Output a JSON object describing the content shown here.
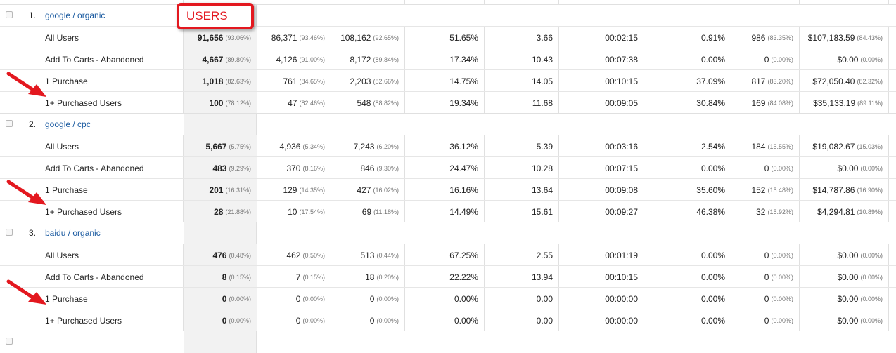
{
  "annotation": {
    "label": "USERS",
    "color": "#e3181f"
  },
  "groups": [
    {
      "number": "1.",
      "name": "google / organic",
      "rows": [
        {
          "segment": "All Users",
          "users": "91,656",
          "users_pct": "(93.06%)",
          "c2": "86,371",
          "c2_pct": "(93.46%)",
          "c3": "108,162",
          "c3_pct": "(92.65%)",
          "c4": "51.65%",
          "c5": "3.66",
          "c6": "00:02:15",
          "c7": "0.91%",
          "c8": "986",
          "c8_pct": "(83.35%)",
          "c9": "$107,183.59",
          "c9_pct": "(84.43%)"
        },
        {
          "segment": "Add To Carts - Abandoned",
          "users": "4,667",
          "users_pct": "(89.80%)",
          "c2": "4,126",
          "c2_pct": "(91.00%)",
          "c3": "8,172",
          "c3_pct": "(89.84%)",
          "c4": "17.34%",
          "c5": "10.43",
          "c6": "00:07:38",
          "c7": "0.00%",
          "c8": "0",
          "c8_pct": "(0.00%)",
          "c9": "$0.00",
          "c9_pct": "(0.00%)"
        },
        {
          "segment": "1 Purchase",
          "users": "1,018",
          "users_pct": "(82.63%)",
          "c2": "761",
          "c2_pct": "(84.65%)",
          "c3": "2,203",
          "c3_pct": "(82.66%)",
          "c4": "14.75%",
          "c5": "14.05",
          "c6": "00:10:15",
          "c7": "37.09%",
          "c8": "817",
          "c8_pct": "(83.20%)",
          "c9": "$72,050.40",
          "c9_pct": "(82.32%)"
        },
        {
          "segment": "1+ Purchased Users",
          "users": "100",
          "users_pct": "(78.12%)",
          "c2": "47",
          "c2_pct": "(82.46%)",
          "c3": "548",
          "c3_pct": "(88.82%)",
          "c4": "19.34%",
          "c5": "11.68",
          "c6": "00:09:05",
          "c7": "30.84%",
          "c8": "169",
          "c8_pct": "(84.08%)",
          "c9": "$35,133.19",
          "c9_pct": "(89.11%)"
        }
      ]
    },
    {
      "number": "2.",
      "name": "google / cpc",
      "rows": [
        {
          "segment": "All Users",
          "users": "5,667",
          "users_pct": "(5.75%)",
          "c2": "4,936",
          "c2_pct": "(5.34%)",
          "c3": "7,243",
          "c3_pct": "(6.20%)",
          "c4": "36.12%",
          "c5": "5.39",
          "c6": "00:03:16",
          "c7": "2.54%",
          "c8": "184",
          "c8_pct": "(15.55%)",
          "c9": "$19,082.67",
          "c9_pct": "(15.03%)"
        },
        {
          "segment": "Add To Carts - Abandoned",
          "users": "483",
          "users_pct": "(9.29%)",
          "c2": "370",
          "c2_pct": "(8.16%)",
          "c3": "846",
          "c3_pct": "(9.30%)",
          "c4": "24.47%",
          "c5": "10.28",
          "c6": "00:07:15",
          "c7": "0.00%",
          "c8": "0",
          "c8_pct": "(0.00%)",
          "c9": "$0.00",
          "c9_pct": "(0.00%)"
        },
        {
          "segment": "1 Purchase",
          "users": "201",
          "users_pct": "(16.31%)",
          "c2": "129",
          "c2_pct": "(14.35%)",
          "c3": "427",
          "c3_pct": "(16.02%)",
          "c4": "16.16%",
          "c5": "13.64",
          "c6": "00:09:08",
          "c7": "35.60%",
          "c8": "152",
          "c8_pct": "(15.48%)",
          "c9": "$14,787.86",
          "c9_pct": "(16.90%)"
        },
        {
          "segment": "1+ Purchased Users",
          "users": "28",
          "users_pct": "(21.88%)",
          "c2": "10",
          "c2_pct": "(17.54%)",
          "c3": "69",
          "c3_pct": "(11.18%)",
          "c4": "14.49%",
          "c5": "15.61",
          "c6": "00:09:27",
          "c7": "46.38%",
          "c8": "32",
          "c8_pct": "(15.92%)",
          "c9": "$4,294.81",
          "c9_pct": "(10.89%)"
        }
      ]
    },
    {
      "number": "3.",
      "name": "baidu / organic",
      "rows": [
        {
          "segment": "All Users",
          "users": "476",
          "users_pct": "(0.48%)",
          "c2": "462",
          "c2_pct": "(0.50%)",
          "c3": "513",
          "c3_pct": "(0.44%)",
          "c4": "67.25%",
          "c5": "2.55",
          "c6": "00:01:19",
          "c7": "0.00%",
          "c8": "0",
          "c8_pct": "(0.00%)",
          "c9": "$0.00",
          "c9_pct": "(0.00%)"
        },
        {
          "segment": "Add To Carts - Abandoned",
          "users": "8",
          "users_pct": "(0.15%)",
          "c2": "7",
          "c2_pct": "(0.15%)",
          "c3": "18",
          "c3_pct": "(0.20%)",
          "c4": "22.22%",
          "c5": "13.94",
          "c6": "00:10:15",
          "c7": "0.00%",
          "c8": "0",
          "c8_pct": "(0.00%)",
          "c9": "$0.00",
          "c9_pct": "(0.00%)"
        },
        {
          "segment": "1 Purchase",
          "users": "0",
          "users_pct": "(0.00%)",
          "c2": "0",
          "c2_pct": "(0.00%)",
          "c3": "0",
          "c3_pct": "(0.00%)",
          "c4": "0.00%",
          "c5": "0.00",
          "c6": "00:00:00",
          "c7": "0.00%",
          "c8": "0",
          "c8_pct": "(0.00%)",
          "c9": "$0.00",
          "c9_pct": "(0.00%)"
        },
        {
          "segment": "1+ Purchased Users",
          "users": "0",
          "users_pct": "(0.00%)",
          "c2": "0",
          "c2_pct": "(0.00%)",
          "c3": "0",
          "c3_pct": "(0.00%)",
          "c4": "0.00%",
          "c5": "0.00",
          "c6": "00:00:00",
          "c7": "0.00%",
          "c8": "0",
          "c8_pct": "(0.00%)",
          "c9": "$0.00",
          "c9_pct": "(0.00%)"
        }
      ]
    }
  ]
}
